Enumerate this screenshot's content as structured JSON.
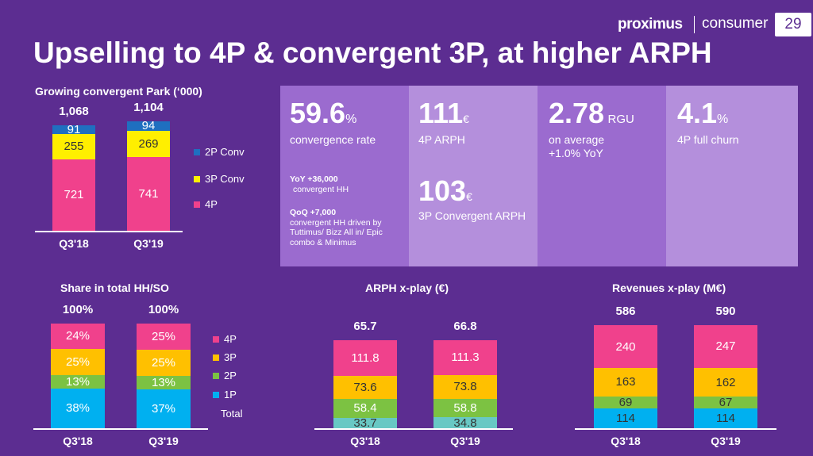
{
  "header": {
    "logo": "proximus",
    "subtitle": "consumer",
    "page": "29"
  },
  "title": "Upselling to 4P & convergent 3P, at higher ARPH",
  "colors": {
    "background": "#5c2d91",
    "pink": "#f0418c",
    "yellow": "#ffef00",
    "blue2p": "#1f6fc0",
    "orange": "#ffc000",
    "green": "#7cc242",
    "cyan": "#00b0f0",
    "teal": "#68c8c4"
  },
  "park": {
    "title": "Growing convergent Park  (‘000)",
    "categories": [
      "Q3'18",
      "Q3'19"
    ],
    "totals": [
      "1,068",
      "1,104"
    ],
    "series": [
      {
        "name": "4P",
        "values": [
          721,
          741
        ]
      },
      {
        "name": "3P Conv",
        "values": [
          255,
          269
        ]
      },
      {
        "name": "2P Conv",
        "values": [
          91,
          94
        ]
      }
    ],
    "legend": [
      "2P Conv",
      "3P Conv",
      "4P"
    ]
  },
  "kpis": {
    "convergence": {
      "value": "59.6",
      "unit": "%",
      "label": "convergence rate",
      "note1_bold": "YoY +36,000",
      "note1": "convergent HH",
      "note2_bold": "QoQ +7,000",
      "note2": "convergent HH driven by Tuttimus/ Bizz All in/ Epic combo & Minimus"
    },
    "arph4p": {
      "value": "111",
      "unit": "€",
      "label": "4P ARPH"
    },
    "arph3p": {
      "value": "103",
      "unit": "€",
      "label": "3P Convergent ARPH"
    },
    "rgu": {
      "value": "2.78",
      "unit": "RGU",
      "label1": "on average",
      "label2": "+1.0% YoY"
    },
    "churn": {
      "value": "4.1",
      "unit": "%",
      "label": "4P full churn"
    }
  },
  "share": {
    "title": "Share in total HH/SO",
    "categories": [
      "Q3'18",
      "Q3'19"
    ],
    "totals": [
      "100%",
      "100%"
    ],
    "series": [
      {
        "name": "1P",
        "values": [
          "38%",
          "37%"
        ],
        "num": [
          38,
          37
        ]
      },
      {
        "name": "2P",
        "values": [
          "13%",
          "13%"
        ],
        "num": [
          13,
          13
        ]
      },
      {
        "name": "3P",
        "values": [
          "25%",
          "25%"
        ],
        "num": [
          25,
          25
        ]
      },
      {
        "name": "4P",
        "values": [
          "24%",
          "25%"
        ],
        "num": [
          24,
          25
        ]
      }
    ],
    "legend": [
      "4P",
      "3P",
      "2P",
      "1P"
    ],
    "legend_total": "Total"
  },
  "arph": {
    "title": "ARPH x-play (€)",
    "categories": [
      "Q3'18",
      "Q3'19"
    ],
    "totals": [
      "65.7",
      "66.8"
    ],
    "series": [
      {
        "name": "1P",
        "values": [
          33.7,
          34.8
        ]
      },
      {
        "name": "2P",
        "values": [
          58.4,
          58.8
        ]
      },
      {
        "name": "3P",
        "values": [
          73.6,
          73.8
        ]
      },
      {
        "name": "4P",
        "values": [
          111.8,
          111.3
        ]
      }
    ]
  },
  "revenues": {
    "title": "Revenues x-play (M€)",
    "categories": [
      "Q3'18",
      "Q3'19"
    ],
    "totals": [
      "586",
      "590"
    ],
    "series": [
      {
        "name": "1P",
        "values": [
          114,
          114
        ]
      },
      {
        "name": "2P",
        "values": [
          69,
          67
        ]
      },
      {
        "name": "3P",
        "values": [
          163,
          162
        ]
      },
      {
        "name": "4P",
        "values": [
          240,
          247
        ]
      }
    ]
  }
}
